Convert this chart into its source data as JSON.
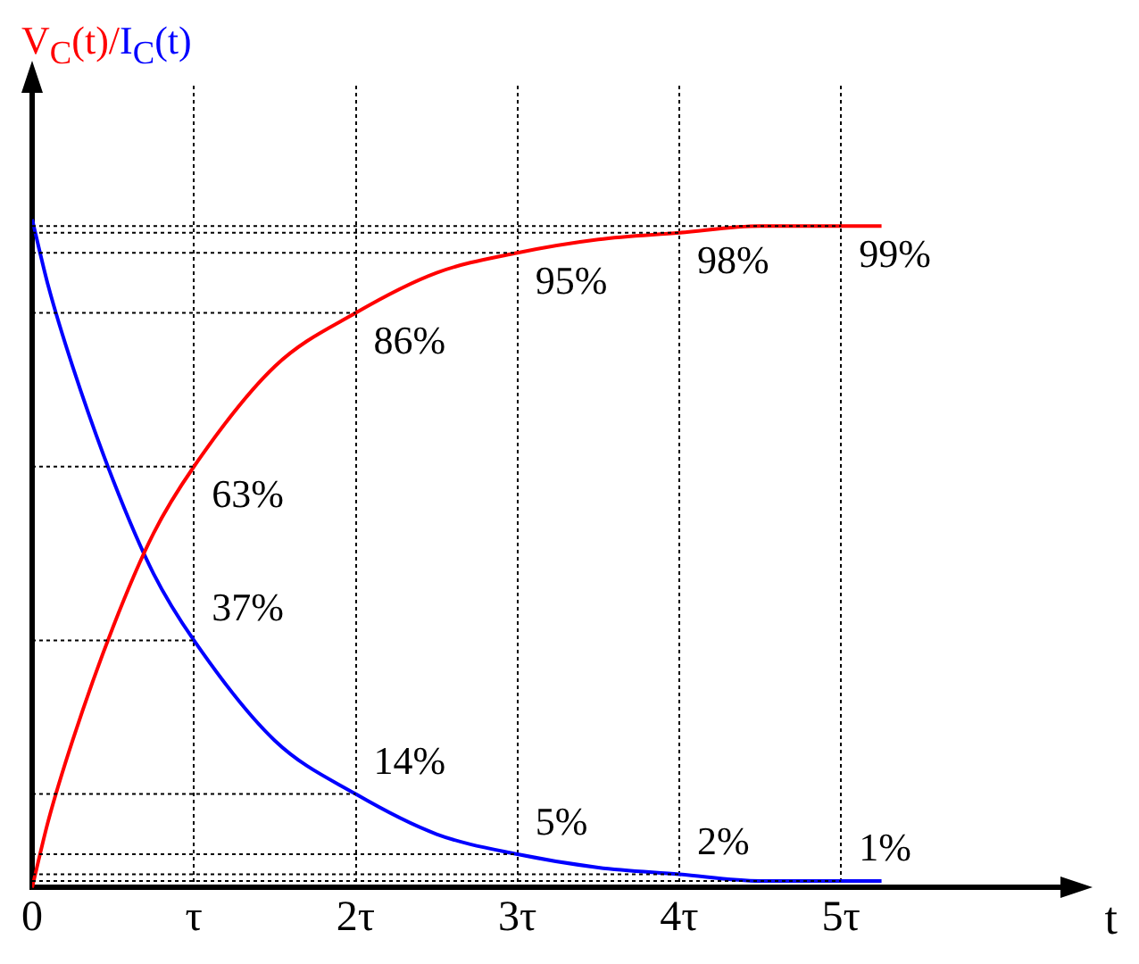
{
  "chart_data": {
    "type": "line",
    "xlabel": "t",
    "x": [
      0,
      0.1,
      0.25,
      0.5,
      0.75,
      1,
      1.5,
      2,
      2.5,
      3,
      3.5,
      4,
      4.5,
      5,
      5.25
    ],
    "xlim": [
      0,
      6.4
    ],
    "xticks": [
      0,
      {
        "value": 1,
        "label": "τ"
      },
      {
        "value": 2,
        "label": "2τ"
      },
      {
        "value": 3,
        "label": "3τ"
      },
      {
        "value": 4,
        "label": "4τ"
      },
      {
        "value": 5,
        "label": "5τ"
      }
    ],
    "series": [
      {
        "name": "V$_{C}$(t)/",
        "color": "#ff0000",
        "values": [
          0,
          10,
          22,
          39,
          53,
          63,
          78,
          86,
          92,
          95,
          97,
          98,
          99,
          99,
          99
        ],
        "value_labels": [
          null,
          null,
          null,
          null,
          null,
          "63%",
          null,
          "86%",
          null,
          "95%",
          null,
          "98%",
          null,
          "99%",
          null
        ]
      },
      {
        "name": "I$_{C}$(t)",
        "color": "#0000ff",
        "values": [
          100,
          90,
          78,
          61,
          47,
          37,
          22,
          14,
          8,
          5,
          3,
          2,
          1,
          1,
          1
        ],
        "value_labels": [
          null,
          null,
          null,
          null,
          null,
          "37%",
          null,
          "14%",
          null,
          "5%",
          null,
          "2%",
          null,
          "1%",
          null
        ]
      }
    ],
    "grid": "x",
    "line_style": "solid",
    "marker": "none",
    "legend": false
  }
}
